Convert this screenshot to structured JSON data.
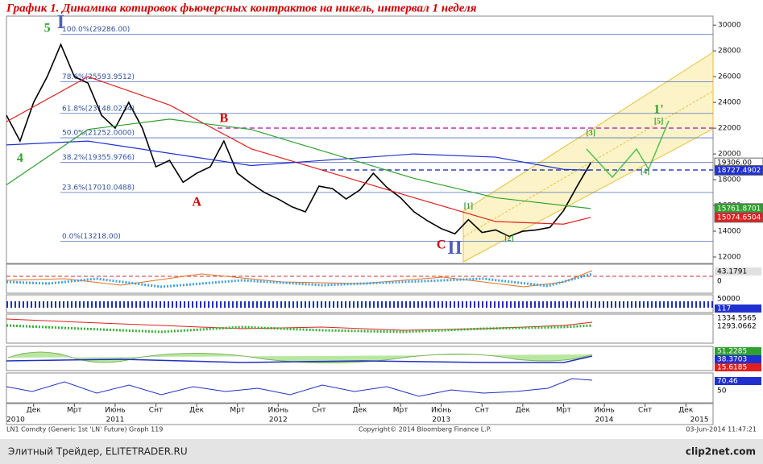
{
  "chart_data": {
    "type": "line",
    "title": "График 1. Динамика котировок фьючерсных контрактов на никель, интервал 1 неделя",
    "xlim": [
      "2010-10",
      "2015-02"
    ],
    "ylim": [
      11500,
      30700
    ],
    "yticks": [
      12000,
      14000,
      16000,
      18000,
      20000,
      22000,
      24000,
      26000,
      28000,
      30000
    ],
    "xticks": [
      {
        "value": "2010-12",
        "label": "Дек"
      },
      {
        "value": "2011-03",
        "label": "Мрт"
      },
      {
        "value": "2011-06",
        "label": "Июнь"
      },
      {
        "value": "2011-09",
        "label": "Снт"
      },
      {
        "value": "2011-12",
        "label": "Дек"
      },
      {
        "value": "2012-03",
        "label": "Мрт"
      },
      {
        "value": "2012-06",
        "label": "Июнь"
      },
      {
        "value": "2012-09",
        "label": "Снт"
      },
      {
        "value": "2012-12",
        "label": "Дек"
      },
      {
        "value": "2013-03",
        "label": "Мрт"
      },
      {
        "value": "2013-06",
        "label": "Июнь"
      },
      {
        "value": "2013-09",
        "label": "Снт"
      },
      {
        "value": "2013-12",
        "label": "Дек"
      },
      {
        "value": "2014-03",
        "label": "Мрт"
      },
      {
        "value": "2014-06",
        "label": "Июнь"
      },
      {
        "value": "2014-09",
        "label": "Снт"
      },
      {
        "value": "2014-12",
        "label": "Дек"
      }
    ],
    "xyears": [
      {
        "value": "2010-10",
        "label": "2010"
      },
      {
        "value": "2011-06",
        "label": "2011"
      },
      {
        "value": "2012-06",
        "label": "2012"
      },
      {
        "value": "2013-06",
        "label": "2013"
      },
      {
        "value": "2014-06",
        "label": "2014"
      },
      {
        "value": "2015-01",
        "label": "2015"
      }
    ],
    "series": [
      {
        "color": "#000000",
        "x": [
          "2010-10",
          "2010-11",
          "2010-12",
          "2011-01",
          "2011-02",
          "2011-03",
          "2011-04",
          "2011-05",
          "2011-06",
          "2011-07",
          "2011-08",
          "2011-09",
          "2011-10",
          "2011-11",
          "2011-12",
          "2012-01",
          "2012-02",
          "2012-03",
          "2012-04",
          "2012-05",
          "2012-06",
          "2012-07",
          "2012-08",
          "2012-09",
          "2012-10",
          "2012-11",
          "2012-12",
          "2013-01",
          "2013-02",
          "2013-03",
          "2013-04",
          "2013-05",
          "2013-06",
          "2013-07",
          "2013-08",
          "2013-09",
          "2013-10",
          "2013-11",
          "2013-12",
          "2014-01",
          "2014-02",
          "2014-03",
          "2014-04",
          "2014-05"
        ],
        "values": [
          23000,
          21000,
          24000,
          26000,
          28500,
          26000,
          25500,
          23000,
          22000,
          24000,
          22000,
          19000,
          19500,
          17800,
          18500,
          19000,
          21000,
          18500,
          17700,
          17000,
          16500,
          15900,
          15500,
          17500,
          17300,
          16500,
          17200,
          18500,
          17400,
          16600,
          15500,
          14800,
          14200,
          13800,
          14900,
          13900,
          14100,
          13600,
          14000,
          14100,
          14300,
          15600,
          17500,
          19306
        ]
      },
      {
        "color": "#e02020",
        "x": [
          "2010-10",
          "2011-04",
          "2011-10",
          "2012-04",
          "2012-10",
          "2013-04",
          "2013-10",
          "2014-03",
          "2014-05"
        ],
        "values": [
          22500,
          26000,
          23800,
          20400,
          18500,
          16600,
          14750,
          14550,
          15074
        ]
      },
      {
        "color": "#2030d0",
        "x": [
          "2010-10",
          "2011-04",
          "2012-04",
          "2013-04",
          "2013-10",
          "2014-03",
          "2014-05"
        ],
        "values": [
          20700,
          21000,
          19100,
          20000,
          19750,
          18800,
          18727
        ]
      },
      {
        "color": "#30a030",
        "x": [
          "2010-10",
          "2011-04",
          "2011-10",
          "2012-04",
          "2012-10",
          "2013-04",
          "2013-10",
          "2014-05"
        ],
        "values": [
          17600,
          21900,
          22700,
          21900,
          20000,
          18100,
          16600,
          15761
        ]
      }
    ],
    "fib_levels": [
      {
        "value": 29286,
        "label": "100.0%(29286.00)"
      },
      {
        "value": 25593.9512,
        "label": "78.6%(25593.9512)"
      },
      {
        "value": 23148.0234,
        "label": "61.8%(23148.0234)"
      },
      {
        "value": 21252,
        "label": "50.0%(21252.0000)"
      },
      {
        "value": 19355.9766,
        "label": "38.2%(19355.9766)"
      },
      {
        "value": 17010.0488,
        "label": "23.6%(17010.0488)"
      },
      {
        "value": 13218,
        "label": "0.0%(13218.00)"
      }
    ],
    "price_labels": [
      {
        "value": 19306,
        "label": "19306.00",
        "color": "#ffffff",
        "text_color": "#000000"
      },
      {
        "value": 18727.4902,
        "label": "18727.4902",
        "color": "#2030d0",
        "text_color": "#ffffff"
      },
      {
        "value": 15761.8701,
        "label": "15761.8701",
        "color": "#30a030",
        "text_color": "#ffffff"
      },
      {
        "value": 15074.6504,
        "label": "15074.6504",
        "color": "#e02020",
        "text_color": "#ffffff"
      }
    ],
    "annotations": [
      {
        "text": "5",
        "x": "2011-01",
        "y": 29700,
        "color": "#30a030"
      },
      {
        "text": "I",
        "x": "2011-02",
        "y": 30100,
        "color": "#5060c0"
      },
      {
        "text": "4",
        "x": "2010-11",
        "y": 19600,
        "color": "#30a030"
      },
      {
        "text": "A",
        "x": "2011-12",
        "y": 16200,
        "color": "#d00000"
      },
      {
        "text": "B",
        "x": "2012-02",
        "y": 22700,
        "color": "#d00000"
      },
      {
        "text": "C",
        "x": "2013-06",
        "y": 12900,
        "color": "#d00000"
      },
      {
        "text": "II",
        "x": "2013-07",
        "y": 12600,
        "color": "#5060c0"
      },
      {
        "text": "[1]",
        "x": "2013-08",
        "y": 15900,
        "color": "#40a040"
      },
      {
        "text": "[2]",
        "x": "2013-11",
        "y": 13400,
        "color": "#40a040"
      },
      {
        "text": "[3]",
        "x": "2014-05",
        "y": 21600,
        "color": "#40a040"
      },
      {
        "text": "[4]",
        "x": "2014-09",
        "y": 18600,
        "color": "#40a040"
      },
      {
        "text": "[5]",
        "x": "2014-10",
        "y": 22500,
        "color": "#40a040"
      },
      {
        "text": "1'",
        "x": "2014-10",
        "y": 23400,
        "color": "#30a030"
      }
    ],
    "indicator_labels": [
      "43.1791",
      "0",
      "50000",
      "117",
      "1334.5565",
      "1293.0662",
      "51.2285",
      "38.3703",
      "15.6185",
      "70.46",
      "50"
    ],
    "footer": {
      "left": "LN1 Comdty (Generic 1st 'LN' Future) Graph 119",
      "center": "Copyright© 2014 Bloomberg Finance L.P.",
      "right": "03-Jun-2014 11:47:21"
    },
    "watermark": {
      "left": "Элитный Трейдер, ELITETRADER.RU",
      "right": "clip2net.com"
    }
  }
}
